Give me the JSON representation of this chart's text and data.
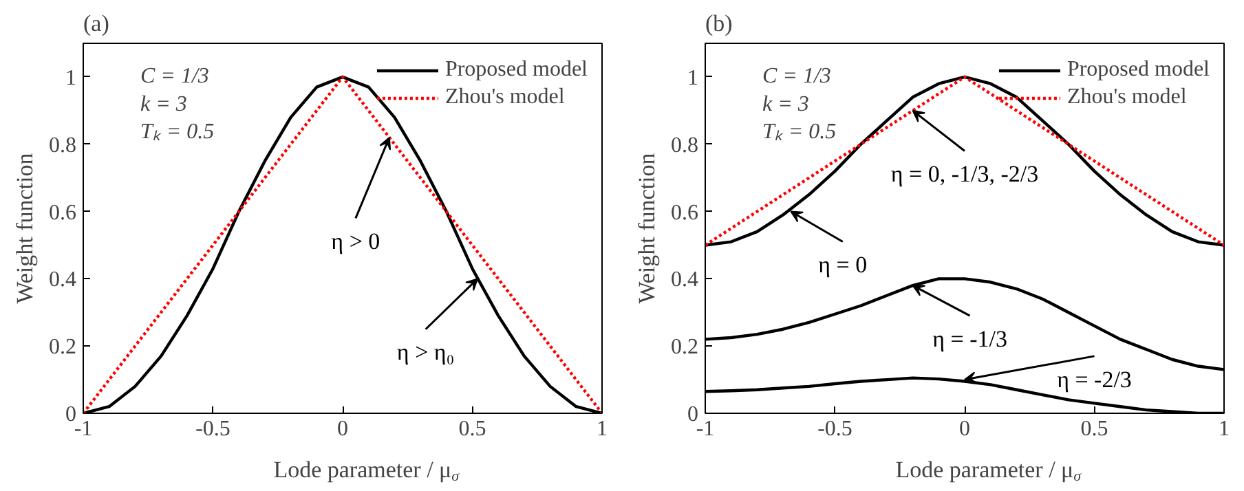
{
  "chart_data": [
    {
      "type": "line",
      "title": "(a)",
      "xlabel": "Lode parameter / μ$_{σ}$",
      "ylabel": "Weight function",
      "xlim": [
        -1,
        1
      ],
      "ylim": [
        0,
        1.1
      ],
      "xticks": [
        -1,
        -0.5,
        0,
        0.5,
        1
      ],
      "yticks": [
        0,
        0.2,
        0.4,
        0.6,
        0.8,
        1
      ],
      "grid": false,
      "legend": "top right",
      "x": [
        -1,
        -0.9,
        -0.8,
        -0.7,
        -0.6,
        -0.5,
        -0.4,
        -0.3,
        -0.2,
        -0.1,
        0,
        0.1,
        0.2,
        0.3,
        0.4,
        0.5,
        0.6,
        0.7,
        0.8,
        0.9,
        1
      ],
      "series": [
        {
          "name": "Proposed model",
          "color": "#000000",
          "line_style": "solid",
          "values": [
            0,
            0.02,
            0.08,
            0.17,
            0.29,
            0.43,
            0.6,
            0.75,
            0.88,
            0.97,
            1,
            0.97,
            0.88,
            0.75,
            0.6,
            0.43,
            0.29,
            0.17,
            0.08,
            0.02,
            0
          ]
        },
        {
          "name": "Zhou's model",
          "color": "#ff0000",
          "line_style": "dotted",
          "x": [
            -1,
            0,
            1
          ],
          "values": [
            0,
            1,
            0
          ]
        }
      ],
      "annotations": [
        "C = 1/3",
        "k = 3",
        "Tₖ = 0.5",
        {
          "text": "η > 0",
          "x": 0.18,
          "y": 0.82
        },
        {
          "text": "η > η₀",
          "x": 0.52,
          "y": 0.4
        }
      ]
    },
    {
      "type": "line",
      "title": "(b)",
      "xlabel": "Lode parameter / μ$_{σ}$",
      "ylabel": "Weight function",
      "xlim": [
        -1,
        1
      ],
      "ylim": [
        0,
        1.1
      ],
      "xticks": [
        -1,
        -0.5,
        0,
        0.5,
        1
      ],
      "yticks": [
        0,
        0.2,
        0.4,
        0.6,
        0.8,
        1
      ],
      "grid": false,
      "legend": "top right",
      "x": [
        -1,
        -0.9,
        -0.8,
        -0.7,
        -0.6,
        -0.5,
        -0.4,
        -0.3,
        -0.2,
        -0.1,
        0,
        0.1,
        0.2,
        0.3,
        0.4,
        0.5,
        0.6,
        0.7,
        0.8,
        0.9,
        1
      ],
      "series": [
        {
          "name": "Proposed model",
          "color": "#000000",
          "line_style": "solid",
          "values": [
            0.5,
            0.51,
            0.54,
            0.59,
            0.65,
            0.72,
            0.8,
            0.87,
            0.94,
            0.98,
            1,
            0.98,
            0.94,
            0.87,
            0.8,
            0.72,
            0.65,
            0.59,
            0.54,
            0.51,
            0.5
          ]
        },
        {
          "name": "Zhou's model",
          "color": "#ff0000",
          "line_style": "dotted",
          "x": [
            -1,
            0,
            1
          ],
          "values": [
            0.5,
            1,
            0.5
          ]
        },
        {
          "color": "#000000",
          "line_style": "solid",
          "values": [
            0.22,
            0.225,
            0.235,
            0.25,
            0.27,
            0.295,
            0.32,
            0.35,
            0.38,
            0.4,
            0.4,
            0.39,
            0.37,
            0.34,
            0.3,
            0.26,
            0.22,
            0.19,
            0.16,
            0.14,
            0.13
          ]
        },
        {
          "color": "#000000",
          "line_style": "solid",
          "values": [
            0.065,
            0.067,
            0.07,
            0.075,
            0.08,
            0.088,
            0.095,
            0.1,
            0.105,
            0.102,
            0.095,
            0.085,
            0.07,
            0.055,
            0.04,
            0.03,
            0.02,
            0.01,
            0.005,
            0,
            0
          ]
        }
      ],
      "annotations": [
        "C = 1/3",
        "k = 3",
        "Tₖ = 0.5",
        {
          "text": "η = 0, -1/3, -2/3",
          "x": -0.2,
          "y": 0.9
        },
        {
          "text": "η = 0",
          "x": -0.67,
          "y": 0.6
        },
        {
          "text": "η = -1/3",
          "x": -0.2,
          "y": 0.38
        },
        {
          "text": "η = -2/3",
          "x": 0.0,
          "y": 0.1
        }
      ]
    }
  ]
}
